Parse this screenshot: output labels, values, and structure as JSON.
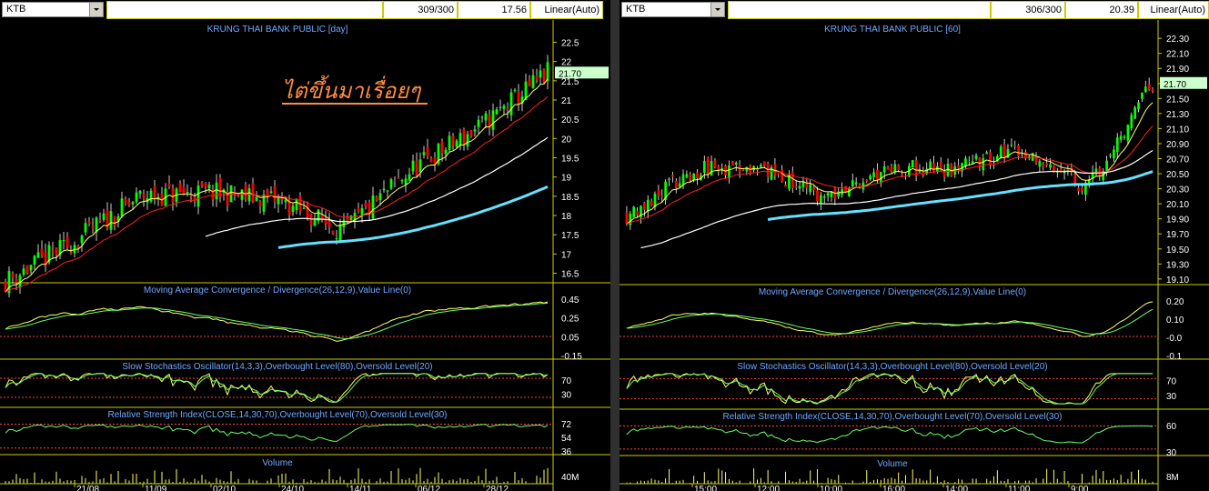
{
  "left": {
    "symbol": "KTB",
    "count": "309/300",
    "price": "17.56",
    "scale": "Linear(Auto)",
    "title": "KRUNG THAI BANK PUBLIC [day]",
    "annotation": "ไต่ขึ้นมาเรื่อยๆ",
    "last_price": "21.70",
    "price_ticks": [
      "22.5",
      "22",
      "21.5",
      "21",
      "20.5",
      "20",
      "19.5",
      "19",
      "18.5",
      "18",
      "17.5",
      "17",
      "16.5"
    ],
    "macd_title": "Moving Average Convergence / Divergence(26,12,9),Value Line(0)",
    "macd_ticks": [
      "0.45",
      "0.25",
      "0.05",
      "-0.15"
    ],
    "sto_title": "Slow Stochastics Oscillator(14,3,3),Overbought Level(80),Oversold Level(20)",
    "sto_ticks": [
      "70",
      "30"
    ],
    "rsi_title": "Relative Strength Index(CLOSE,14,30,70),Overbought Level(70),Oversold Level(30)",
    "rsi_ticks": [
      "72",
      "54",
      "36"
    ],
    "vol_title": "Volume",
    "vol_ticks": [
      "40M"
    ],
    "x_ticks": [
      "21/08",
      "11/09",
      "02/10",
      "24/10",
      "14/11",
      "06/12",
      "28/12"
    ]
  },
  "right": {
    "symbol": "KTB",
    "count": "306/300",
    "price": "20.39",
    "scale": "Linear(Auto)",
    "title": "KRUNG THAI BANK PUBLIC [60]",
    "last_price": "21.70",
    "price_ticks": [
      "22.30",
      "22.10",
      "21.90",
      "21.70",
      "21.50",
      "21.30",
      "21.10",
      "20.90",
      "20.70",
      "20.50",
      "20.30",
      "20.10",
      "19.90",
      "19.70",
      "19.50",
      "19.30",
      "19.10"
    ],
    "macd_title": "Moving Average Convergence / Divergence(26,12,9),Value Line(0)",
    "macd_ticks": [
      "0.20",
      "0.10",
      "-0.0",
      "-0.1"
    ],
    "sto_title": "Slow Stochastics Oscillator(14,3,3),Overbought Level(80),Oversold Level(20)",
    "sto_ticks": [
      "70",
      "30"
    ],
    "rsi_title": "Relative Strength Index(CLOSE,14,30,70),Overbought Level(70),Oversold Level(30)",
    "rsi_ticks": [
      "60",
      "30"
    ],
    "vol_title": "Volume",
    "vol_ticks": [
      "8M"
    ],
    "x_ticks": [
      "15:00",
      "12:00",
      "10:00",
      "16:00",
      "14:00",
      "11:00",
      "9:00"
    ]
  },
  "chart_data": [
    {
      "type": "candlestick",
      "title": "KRUNG THAI BANK PUBLIC [day]",
      "ylim": [
        16.3,
        22.7
      ],
      "x": [
        "21/08",
        "11/09",
        "02/10",
        "24/10",
        "14/11",
        "06/12",
        "28/12"
      ],
      "close_trend": [
        16.3,
        17.3,
        18.5,
        18.6,
        18.4,
        17.6,
        19.2,
        20.3,
        21.7
      ],
      "last": 21.7,
      "colors": {
        "up": "#00ff00",
        "down": "#ff0000",
        "ma_short": "#ffff66",
        "ma_mid": "#ff2020",
        "ma_long": "#ffffff",
        "ma_xlong": "#66e0ff"
      }
    },
    {
      "type": "candlestick",
      "title": "KRUNG THAI BANK PUBLIC [60]",
      "ylim": [
        19.05,
        22.35
      ],
      "x": [
        "15:00",
        "12:00",
        "10:00",
        "16:00",
        "14:00",
        "11:00",
        "9:00"
      ],
      "close_trend": [
        19.95,
        20.55,
        20.6,
        20.15,
        20.6,
        20.55,
        20.85,
        20.3,
        21.7
      ],
      "last": 21.7,
      "colors": {
        "up": "#00ff00",
        "down": "#ff0000",
        "ma_short": "#ffff66",
        "ma_mid": "#ff2020",
        "ma_long": "#ffffff",
        "ma_xlong": "#66e0ff"
      }
    }
  ]
}
